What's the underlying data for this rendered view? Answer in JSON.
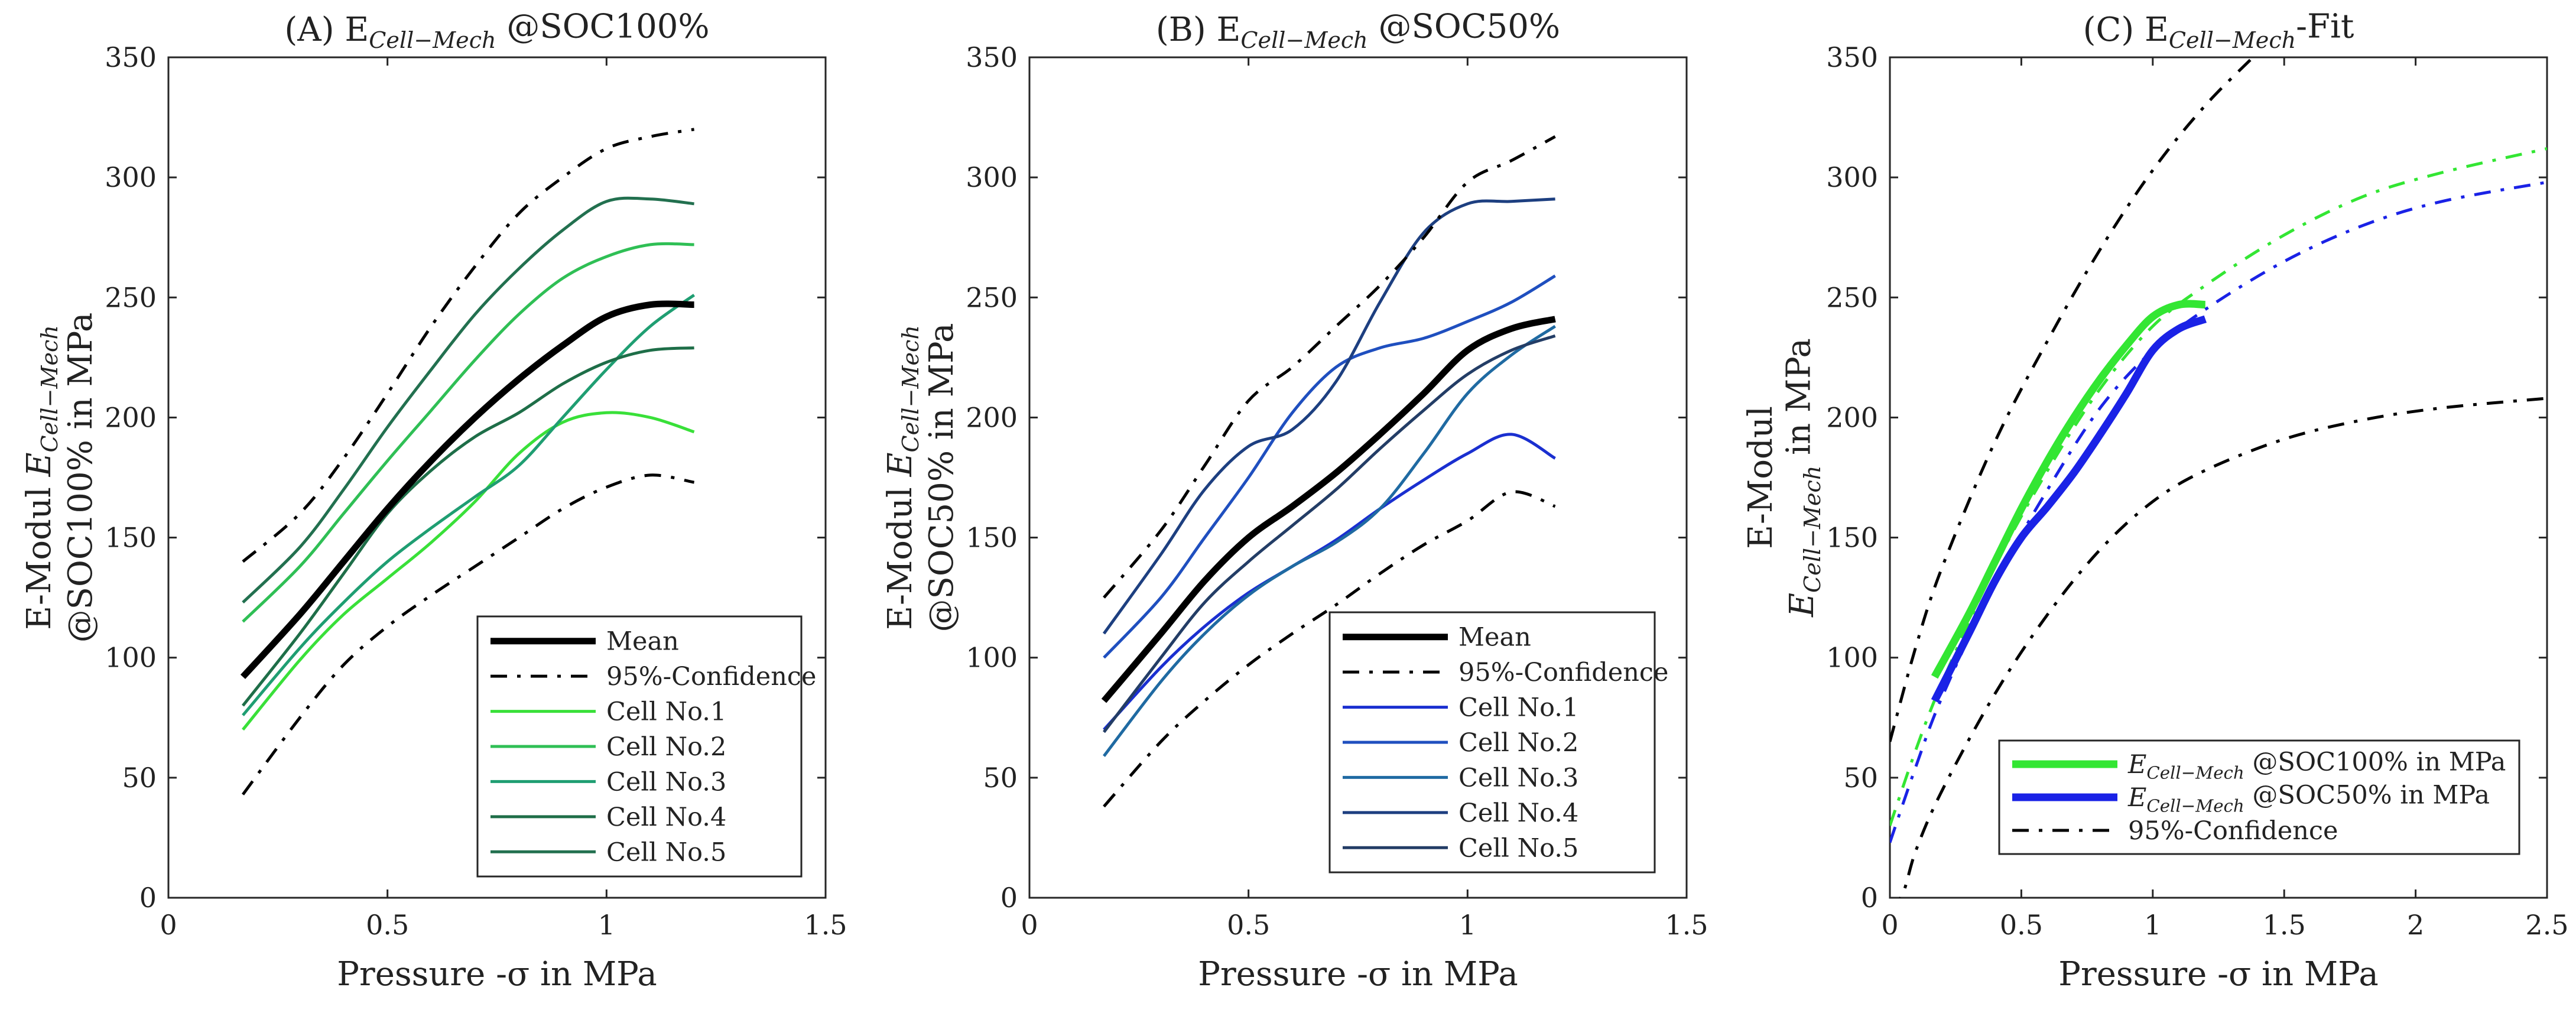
{
  "chart_data": [
    {
      "id": "A",
      "type": "line",
      "title": {
        "prefix": "(A) E",
        "sub": "Cell−Mech",
        "suffix": " @SOC100%"
      },
      "xlabel": "Pressure -σ in MPa",
      "ylabel_lines": [
        {
          "text": "E-Modul ",
          "sub_base": "E",
          "sub": "Cell−Mech"
        },
        {
          "text": "@SOC100% in MPa"
        }
      ],
      "xlim": [
        0,
        1.5
      ],
      "ylim": [
        0,
        350
      ],
      "xticks": [
        0,
        0.5,
        1,
        1.5
      ],
      "xtick_labels": [
        "0",
        "0.5",
        "1",
        "1.5"
      ],
      "yticks": [
        0,
        50,
        100,
        150,
        200,
        250,
        300,
        350
      ],
      "ytick_labels": [
        "0",
        "50",
        "100",
        "150",
        "200",
        "250",
        "300",
        "350"
      ],
      "grid": false,
      "legend_position": "lower-right",
      "series": [
        {
          "name": "Mean",
          "color": "#000000",
          "style": "solid",
          "width": 11,
          "x": [
            0.17,
            0.3,
            0.4,
            0.5,
            0.6,
            0.7,
            0.8,
            0.9,
            1.0,
            1.1,
            1.2
          ],
          "y": [
            92,
            118,
            140,
            162,
            182,
            200,
            216,
            230,
            242,
            247,
            247
          ]
        },
        {
          "name": "95%-Confidence",
          "color": "#000000",
          "style": "dashdot",
          "width": 5,
          "x": [
            0.17,
            0.3,
            0.4,
            0.5,
            0.6,
            0.7,
            0.8,
            0.9,
            1.0,
            1.1,
            1.2
          ],
          "y": [
            140,
            160,
            183,
            210,
            238,
            263,
            285,
            300,
            312,
            317,
            320
          ],
          "y_lower": [
            43,
            75,
            97,
            113,
            126,
            138,
            150,
            162,
            171,
            176,
            173
          ]
        },
        {
          "name": "Cell No.1",
          "color": "#39e039",
          "style": "solid",
          "width": 5,
          "x": [
            0.17,
            0.3,
            0.4,
            0.5,
            0.6,
            0.7,
            0.8,
            0.9,
            1.0,
            1.1,
            1.2
          ],
          "y": [
            70,
            99,
            118,
            133,
            148,
            165,
            185,
            198,
            202,
            200,
            194
          ]
        },
        {
          "name": "Cell No.2",
          "color": "#2fbf55",
          "style": "solid",
          "width": 5,
          "x": [
            0.17,
            0.3,
            0.4,
            0.5,
            0.6,
            0.7,
            0.8,
            0.9,
            1.0,
            1.1,
            1.2
          ],
          "y": [
            115,
            138,
            160,
            182,
            203,
            224,
            243,
            258,
            267,
            272,
            272
          ]
        },
        {
          "name": "Cell No.3",
          "color": "#1f9e72",
          "style": "solid",
          "width": 5,
          "x": [
            0.17,
            0.3,
            0.4,
            0.5,
            0.6,
            0.7,
            0.8,
            0.9,
            1.0,
            1.1,
            1.2
          ],
          "y": [
            76,
            104,
            123,
            140,
            154,
            167,
            180,
            200,
            220,
            238,
            251
          ]
        },
        {
          "name": "Cell No.4",
          "color": "#1e6e48",
          "style": "solid",
          "width": 5,
          "x": [
            0.17,
            0.3,
            0.4,
            0.5,
            0.6,
            0.7,
            0.8,
            0.9,
            1.0,
            1.1,
            1.2
          ],
          "y": [
            80,
            110,
            135,
            160,
            178,
            192,
            202,
            214,
            223,
            228,
            229
          ]
        },
        {
          "name": "Cell No.5",
          "color": "#22704f",
          "style": "solid",
          "width": 5,
          "x": [
            0.17,
            0.3,
            0.4,
            0.5,
            0.6,
            0.7,
            0.8,
            0.9,
            1.0,
            1.1,
            1.2
          ],
          "y": [
            123,
            146,
            170,
            196,
            220,
            243,
            262,
            278,
            290,
            291,
            289
          ]
        }
      ]
    },
    {
      "id": "B",
      "type": "line",
      "title": {
        "prefix": "(B) E",
        "sub": "Cell−Mech",
        "suffix": " @SOC50%"
      },
      "xlabel": "Pressure -σ in MPa",
      "ylabel_lines": [
        {
          "text": "E-Modul ",
          "sub_base": "E",
          "sub": "Cell−Mech"
        },
        {
          "text": "@SOC50% in MPa"
        }
      ],
      "xlim": [
        0,
        1.5
      ],
      "ylim": [
        0,
        350
      ],
      "xticks": [
        0,
        0.5,
        1,
        1.5
      ],
      "xtick_labels": [
        "0",
        "0.5",
        "1",
        "1.5"
      ],
      "yticks": [
        0,
        50,
        100,
        150,
        200,
        250,
        300,
        350
      ],
      "ytick_labels": [
        "0",
        "50",
        "100",
        "150",
        "200",
        "250",
        "300",
        "350"
      ],
      "grid": false,
      "legend_position": "lower-right",
      "series": [
        {
          "name": "Mean",
          "color": "#000000",
          "style": "solid",
          "width": 11,
          "x": [
            0.17,
            0.3,
            0.4,
            0.5,
            0.6,
            0.7,
            0.8,
            0.9,
            1.0,
            1.1,
            1.2
          ],
          "y": [
            82,
            110,
            132,
            150,
            163,
            177,
            193,
            210,
            228,
            237,
            241
          ]
        },
        {
          "name": "95%-Confidence",
          "color": "#000000",
          "style": "dashdot",
          "width": 5,
          "x": [
            0.17,
            0.3,
            0.4,
            0.5,
            0.6,
            0.7,
            0.8,
            0.9,
            1.0,
            1.1,
            1.2
          ],
          "y": [
            125,
            153,
            180,
            207,
            221,
            238,
            255,
            275,
            298,
            307,
            317
          ],
          "y_lower": [
            38,
            65,
            82,
            97,
            110,
            122,
            135,
            147,
            157,
            169,
            163
          ]
        },
        {
          "name": "Cell No.1",
          "color": "#1a2fd0",
          "style": "solid",
          "width": 5,
          "x": [
            0.17,
            0.3,
            0.4,
            0.5,
            0.6,
            0.7,
            0.8,
            0.9,
            1.0,
            1.1,
            1.2
          ],
          "y": [
            70,
            96,
            113,
            127,
            138,
            149,
            162,
            174,
            185,
            193,
            183
          ]
        },
        {
          "name": "Cell No.2",
          "color": "#1f4fbf",
          "style": "solid",
          "width": 5,
          "x": [
            0.17,
            0.3,
            0.4,
            0.5,
            0.6,
            0.7,
            0.8,
            0.9,
            1.0,
            1.1,
            1.2
          ],
          "y": [
            100,
            125,
            150,
            175,
            202,
            221,
            229,
            233,
            240,
            248,
            259
          ]
        },
        {
          "name": "Cell No.3",
          "color": "#1f6aa2",
          "style": "solid",
          "width": 5,
          "x": [
            0.17,
            0.3,
            0.4,
            0.5,
            0.6,
            0.7,
            0.8,
            0.9,
            1.0,
            1.1,
            1.2
          ],
          "y": [
            59,
            90,
            110,
            126,
            138,
            148,
            162,
            185,
            210,
            226,
            238
          ]
        },
        {
          "name": "Cell No.4",
          "color": "#1d3f80",
          "style": "solid",
          "width": 5,
          "x": [
            0.17,
            0.3,
            0.4,
            0.5,
            0.6,
            0.7,
            0.8,
            0.9,
            1.0,
            1.1,
            1.2
          ],
          "y": [
            110,
            143,
            170,
            188,
            195,
            215,
            248,
            277,
            289,
            290,
            291
          ]
        },
        {
          "name": "Cell No.5",
          "color": "#233d66",
          "style": "solid",
          "width": 5,
          "x": [
            0.17,
            0.3,
            0.4,
            0.5,
            0.6,
            0.7,
            0.8,
            0.9,
            1.0,
            1.1,
            1.2
          ],
          "y": [
            69,
            100,
            123,
            140,
            155,
            170,
            187,
            203,
            218,
            228,
            234
          ]
        }
      ]
    },
    {
      "id": "C",
      "type": "line",
      "title": {
        "prefix": "(C) E",
        "sub": "Cell−Mech",
        "suffix": "-Fit"
      },
      "xlabel": "Pressure -σ in MPa",
      "ylabel_lines": [
        {
          "text": "E-Modul"
        },
        {
          "text": " in MPa",
          "sub_base": "E",
          "sub": "Cell−Mech",
          "sub_first": true
        }
      ],
      "xlim": [
        0,
        2.5
      ],
      "ylim": [
        0,
        350
      ],
      "xticks": [
        0,
        0.5,
        1,
        1.5,
        2,
        2.5
      ],
      "xtick_labels": [
        "0",
        "0.5",
        "1",
        "1.5",
        "2",
        "2.5"
      ],
      "yticks": [
        0,
        50,
        100,
        150,
        200,
        250,
        300,
        350
      ],
      "ytick_labels": [
        "0",
        "50",
        "100",
        "150",
        "200",
        "250",
        "300",
        "350"
      ],
      "grid": false,
      "legend_position": "lower-right",
      "series": [
        {
          "name": "E_Cell-Mech @SOC100% in MPa",
          "legend_base": "E",
          "legend_sub": "Cell−Mech",
          "legend_suffix": " @SOC100% in MPa",
          "color": "#33e633",
          "style": "solid",
          "width": 13,
          "x": [
            0.17,
            0.3,
            0.4,
            0.5,
            0.6,
            0.7,
            0.8,
            0.9,
            1.0,
            1.1,
            1.2
          ],
          "y": [
            92,
            118,
            140,
            162,
            182,
            200,
            216,
            230,
            242,
            247,
            247
          ],
          "fit": {
            "x": [
              0.0,
              0.1,
              0.2,
              0.4,
              0.6,
              0.8,
              1.0,
              1.2,
              1.5,
              1.8,
              2.1,
              2.5
            ],
            "y": [
              30,
              62,
              90,
              138,
              178,
              212,
              238,
              255,
              276,
              292,
              302,
              312
            ]
          }
        },
        {
          "name": "E_Cell-Mech @SOC50% in MPa",
          "legend_base": "E",
          "legend_sub": "Cell−Mech",
          "legend_suffix": " @SOC50% in MPa",
          "color": "#1a22e6",
          "style": "solid",
          "width": 13,
          "x": [
            0.17,
            0.3,
            0.4,
            0.5,
            0.6,
            0.7,
            0.8,
            0.9,
            1.0,
            1.1,
            1.2
          ],
          "y": [
            82,
            110,
            132,
            150,
            163,
            177,
            193,
            210,
            228,
            237,
            241
          ],
          "fit": {
            "x": [
              0.0,
              0.1,
              0.2,
              0.4,
              0.6,
              0.8,
              1.0,
              1.2,
              1.5,
              1.8,
              2.1,
              2.5
            ],
            "y": [
              23,
              55,
              84,
              131,
              170,
              204,
              228,
              245,
              265,
              280,
              290,
              298
            ]
          }
        },
        {
          "name": "95%-Confidence",
          "color": "#000000",
          "style": "dashdot",
          "width": 5,
          "x": [
            0.0,
            0.1,
            0.2,
            0.4,
            0.6,
            0.8,
            1.0,
            1.2,
            1.4
          ],
          "y": [
            65,
            105,
            138,
            190,
            232,
            270,
            303,
            330,
            352
          ],
          "lower": {
            "x": [
              0.0,
              0.05,
              0.1,
              0.2,
              0.4,
              0.6,
              0.8,
              1.0,
              1.2,
              1.5,
              1.8,
              2.1,
              2.5
            ],
            "y": [
              -5,
              2,
              20,
              45,
              85,
              118,
              145,
              165,
              178,
              191,
              199,
              204,
              208
            ]
          }
        }
      ]
    }
  ]
}
